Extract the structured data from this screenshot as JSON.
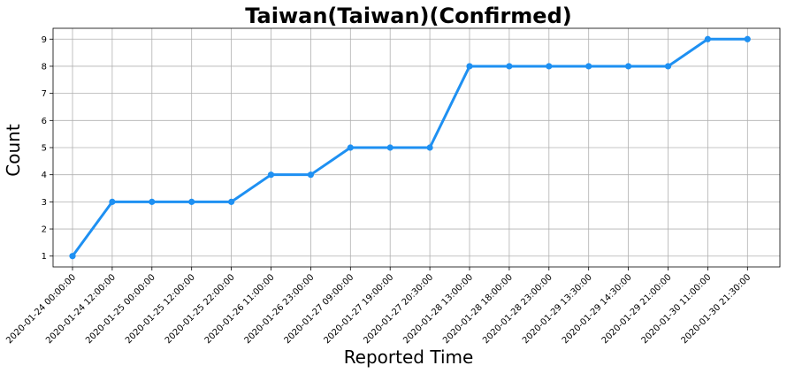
{
  "chart_data": {
    "type": "line",
    "title": "Taiwan(Taiwan)(Confirmed)",
    "xlabel": "Reported Time",
    "ylabel": "Count",
    "categories": [
      "2020-01-24 00:00:00",
      "2020-01-24 12:00:00",
      "2020-01-25 00:00:00",
      "2020-01-25 12:00:00",
      "2020-01-25 22:00:00",
      "2020-01-26 11:00:00",
      "2020-01-26 23:00:00",
      "2020-01-27 09:00:00",
      "2020-01-27 19:00:00",
      "2020-01-27 20:30:00",
      "2020-01-28 13:00:00",
      "2020-01-28 18:00:00",
      "2020-01-28 23:00:00",
      "2020-01-29 13:30:00",
      "2020-01-29 14:30:00",
      "2020-01-29 21:00:00",
      "2020-01-30 11:00:00",
      "2020-01-30 21:30:00"
    ],
    "values": [
      1,
      3,
      3,
      3,
      3,
      4,
      4,
      5,
      5,
      5,
      8,
      8,
      8,
      8,
      8,
      8,
      9,
      9
    ],
    "yticks": [
      1,
      2,
      3,
      4,
      5,
      6,
      7,
      8,
      9
    ],
    "ylim": [
      0.6,
      9.4
    ],
    "grid": true,
    "line_color": "#1e90f2"
  }
}
